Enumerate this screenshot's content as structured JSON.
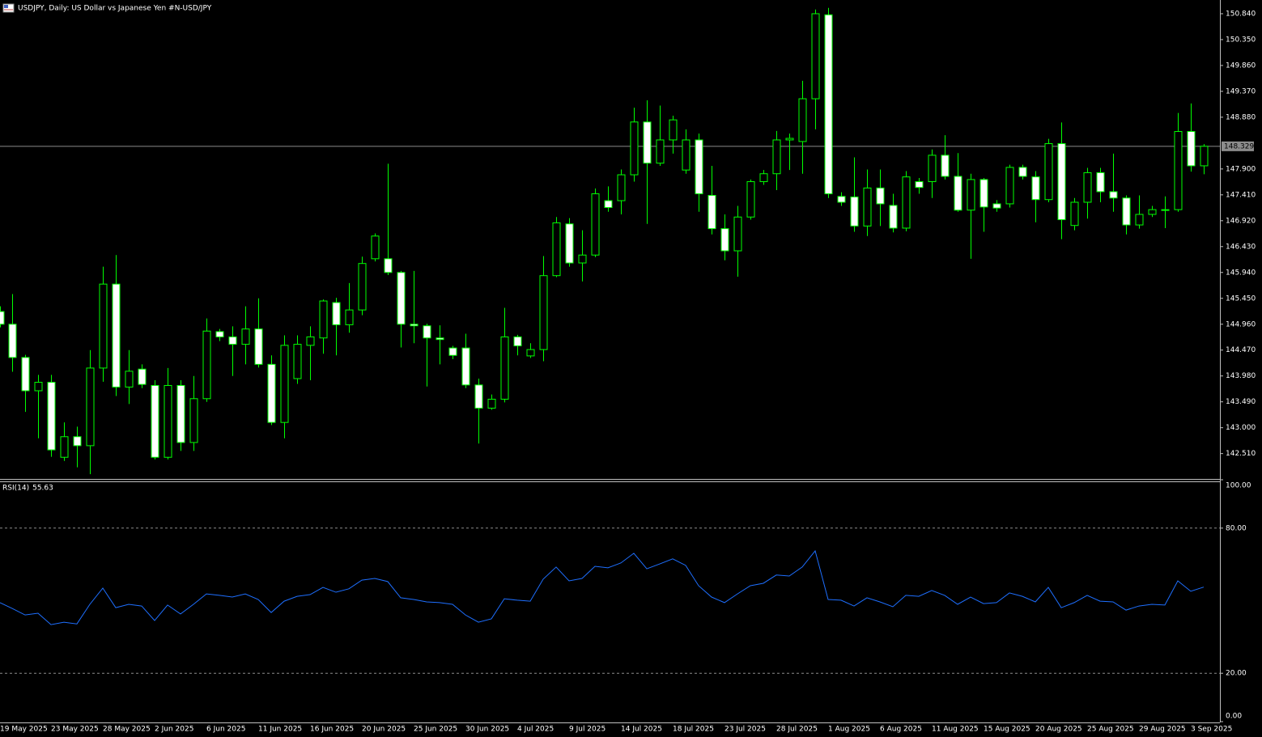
{
  "chart_data": [
    {
      "type": "candlestick",
      "title": "USDJPY, Daily:  US Dollar vs  Japanese Yen #N-USD/JPY",
      "categories": [
        "19 May 2025",
        null,
        null,
        null,
        "23 May 2025",
        null,
        null,
        null,
        "28 May 2025",
        null,
        null,
        null,
        "2 Jun 2025",
        null,
        null,
        null,
        "6 Jun 2025",
        null,
        null,
        null,
        "11 Jun 2025",
        null,
        null,
        null,
        "16 Jun 2025",
        null,
        null,
        null,
        "20 Jun 2025",
        null,
        null,
        null,
        "25 Jun 2025",
        null,
        null,
        null,
        "30 Jun 2025",
        null,
        null,
        null,
        "4 Jul 2025",
        null,
        null,
        null,
        "9 Jul 2025",
        null,
        null,
        null,
        "14 Jul 2025",
        null,
        null,
        null,
        "18 Jul 2025",
        null,
        null,
        null,
        "23 Jul 2025",
        null,
        null,
        null,
        "28 Jul 2025",
        null,
        null,
        null,
        "1 Aug 2025",
        null,
        null,
        null,
        "6 Aug 2025",
        null,
        null,
        null,
        "11 Aug 2025",
        null,
        null,
        null,
        "15 Aug 2025",
        null,
        null,
        null,
        "20 Aug 2025",
        null,
        null,
        null,
        "25 Aug 2025",
        null,
        null,
        null,
        "29 Aug 2025",
        null,
        null,
        null,
        "3 Sep 2025",
        null
      ],
      "open": [
        145.2,
        144.96,
        144.33,
        143.7,
        143.86,
        142.44,
        142.83,
        142.66,
        144.13,
        145.72,
        143.77,
        144.11,
        143.8,
        142.44,
        143.8,
        142.72,
        143.55,
        144.82,
        144.72,
        144.58,
        144.87,
        144.2,
        143.1,
        143.93,
        144.56,
        144.7,
        145.37,
        144.95,
        145.23,
        146.2,
        146.2,
        145.94,
        144.96,
        144.93,
        144.7,
        144.51,
        144.51,
        143.81,
        143.37,
        143.54,
        144.72,
        144.36,
        144.48,
        145.88,
        146.86,
        146.12,
        146.27,
        147.3,
        147.3,
        147.79,
        148.79,
        148.01,
        148.45,
        147.88,
        148.45,
        147.4,
        146.77,
        146.35,
        146.99,
        147.66,
        147.81,
        148.45,
        148.42,
        149.23,
        150.82,
        147.38,
        147.37,
        146.82,
        147.54,
        147.21,
        146.78,
        147.66,
        147.66,
        148.16,
        147.76,
        147.12,
        147.7,
        147.24,
        147.24,
        147.93,
        147.75,
        147.32,
        148.38,
        146.83,
        147.27,
        147.83,
        147.47,
        147.35,
        146.84,
        147.04,
        147.12,
        147.13,
        148.61,
        147.96
      ],
      "high": [
        145.3,
        145.53,
        144.38,
        144.0,
        144.0,
        143.1,
        143.02,
        144.47,
        146.05,
        146.27,
        144.47,
        144.2,
        143.9,
        144.13,
        143.9,
        143.98,
        145.07,
        144.87,
        144.92,
        145.3,
        145.45,
        144.37,
        144.75,
        144.75,
        144.92,
        145.43,
        145.46,
        145.74,
        146.24,
        146.68,
        148.0,
        145.97,
        145.97,
        144.97,
        144.94,
        144.55,
        144.78,
        143.93,
        143.63,
        145.27,
        144.76,
        144.6,
        146.25,
        146.99,
        146.97,
        146.74,
        147.53,
        147.57,
        147.89,
        149.06,
        149.2,
        149.1,
        148.91,
        148.65,
        148.57,
        147.96,
        147.04,
        147.2,
        147.7,
        147.88,
        148.62,
        148.57,
        149.57,
        150.92,
        150.95,
        147.46,
        148.12,
        147.89,
        147.89,
        147.43,
        147.86,
        147.73,
        148.27,
        148.54,
        148.2,
        147.81,
        147.73,
        147.31,
        147.98,
        147.98,
        147.86,
        148.47,
        148.78,
        147.35,
        147.92,
        147.92,
        148.19,
        147.4,
        147.4,
        147.2,
        147.38,
        148.96,
        149.14,
        148.37
      ],
      "low": [
        144.9,
        144.06,
        143.3,
        142.8,
        142.45,
        142.37,
        142.25,
        142.12,
        143.87,
        143.6,
        143.45,
        143.75,
        142.4,
        142.4,
        142.56,
        142.56,
        143.49,
        144.64,
        143.98,
        144.2,
        144.14,
        143.05,
        142.8,
        143.83,
        143.9,
        144.4,
        144.37,
        144.8,
        145.13,
        146.15,
        145.89,
        144.52,
        144.6,
        143.78,
        144.2,
        144.3,
        143.75,
        142.7,
        143.34,
        143.48,
        144.37,
        144.32,
        144.26,
        145.85,
        146.05,
        145.77,
        146.23,
        147.09,
        147.04,
        147.66,
        146.86,
        147.96,
        148.19,
        147.81,
        147.09,
        146.66,
        146.17,
        145.86,
        146.94,
        147.6,
        147.5,
        147.88,
        147.81,
        148.65,
        147.35,
        147.2,
        146.71,
        146.63,
        146.82,
        146.7,
        146.72,
        147.43,
        147.35,
        147.7,
        147.09,
        146.2,
        146.71,
        147.09,
        147.17,
        147.7,
        146.89,
        147.27,
        146.57,
        146.74,
        146.96,
        147.27,
        147.09,
        146.66,
        146.77,
        146.99,
        146.78,
        147.09,
        147.85,
        147.8
      ],
      "close": [
        144.96,
        144.33,
        143.7,
        143.86,
        142.58,
        142.83,
        142.66,
        144.13,
        145.72,
        143.77,
        144.07,
        143.82,
        142.44,
        143.8,
        142.72,
        143.55,
        144.83,
        144.72,
        144.58,
        144.87,
        144.2,
        143.1,
        144.56,
        144.58,
        144.72,
        145.4,
        144.95,
        145.23,
        146.11,
        146.63,
        145.94,
        144.96,
        144.93,
        144.7,
        144.67,
        144.37,
        143.81,
        143.37,
        143.54,
        144.72,
        144.55,
        144.48,
        145.88,
        146.88,
        146.12,
        146.27,
        147.43,
        147.17,
        147.79,
        148.79,
        148.01,
        148.45,
        148.83,
        148.45,
        147.43,
        146.77,
        146.35,
        146.99,
        147.66,
        147.81,
        148.45,
        148.48,
        149.23,
        150.84,
        147.43,
        147.27,
        146.82,
        147.54,
        147.24,
        146.78,
        147.75,
        147.55,
        148.16,
        147.76,
        147.12,
        147.7,
        147.18,
        147.16,
        147.93,
        147.76,
        147.32,
        148.38,
        146.94,
        147.27,
        147.83,
        147.47,
        147.35,
        146.84,
        147.04,
        147.13,
        147.13,
        148.61,
        147.96,
        148.33
      ],
      "color": "#00ff00",
      "up_fill": "#000000",
      "down_fill": "#ffffff",
      "ylim": [
        142.03,
        151.1
      ],
      "yticks": [
        {
          "value": 142.51,
          "label": "142.510"
        },
        {
          "value": 143.0,
          "label": "143.000"
        },
        {
          "value": 143.49,
          "label": "143.490"
        },
        {
          "value": 143.98,
          "label": "143.980"
        },
        {
          "value": 144.47,
          "label": "144.470"
        },
        {
          "value": 144.96,
          "label": "144.960"
        },
        {
          "value": 145.45,
          "label": "145.450"
        },
        {
          "value": 145.94,
          "label": "145.940"
        },
        {
          "value": 146.43,
          "label": "146.430"
        },
        {
          "value": 146.92,
          "label": "146.920"
        },
        {
          "value": 147.41,
          "label": "147.410"
        },
        {
          "value": 147.9,
          "label": "147.900"
        },
        {
          "value": 148.88,
          "label": "148.880"
        },
        {
          "value": 149.37,
          "label": "149.370"
        },
        {
          "value": 149.86,
          "label": "149.860"
        },
        {
          "value": 150.35,
          "label": "150.350"
        },
        {
          "value": 150.84,
          "label": "150.840"
        }
      ],
      "current_price": 148.329
    },
    {
      "type": "line",
      "series": [
        {
          "name": "RSI(14)",
          "color": "#1e6fff",
          "values": [
            49.2,
            46.8,
            44.1,
            44.8,
            40.1,
            41.1,
            40.4,
            48.5,
            55.2,
            47.1,
            48.5,
            47.8,
            41.8,
            48.2,
            44.5,
            48.5,
            52.8,
            52.2,
            51.5,
            52.8,
            50.5,
            45.1,
            49.8,
            51.8,
            52.5,
            55.5,
            53.5,
            54.9,
            58.5,
            59.2,
            57.9,
            51.2,
            50.5,
            49.5,
            49.2,
            48.5,
            44.1,
            41.1,
            42.5,
            50.8,
            50.2,
            49.8,
            58.9,
            63.9,
            58.2,
            59.2,
            64.2,
            63.6,
            65.6,
            69.6,
            63.2,
            65.2,
            67.3,
            64.6,
            56.2,
            51.5,
            49.2,
            52.8,
            56.2,
            57.2,
            60.6,
            60.2,
            63.9,
            70.6,
            50.5,
            50.2,
            47.8,
            51.2,
            49.5,
            47.5,
            52.2,
            51.8,
            54.2,
            52.2,
            48.5,
            51.5,
            48.8,
            49.2,
            53.2,
            51.8,
            49.5,
            55.5,
            47.1,
            49.2,
            52.2,
            49.8,
            49.5,
            46.1,
            47.8,
            48.5,
            48.2,
            58.2,
            53.9,
            55.63
          ]
        }
      ],
      "ylim": [
        0,
        100
      ],
      "yticks": [
        {
          "value": 0,
          "label": "0.00"
        },
        {
          "value": 20,
          "label": "20.00"
        },
        {
          "value": 80,
          "label": "80.00"
        },
        {
          "value": 100,
          "label": "100.00"
        }
      ],
      "levels": [
        20,
        80
      ]
    }
  ]
}
